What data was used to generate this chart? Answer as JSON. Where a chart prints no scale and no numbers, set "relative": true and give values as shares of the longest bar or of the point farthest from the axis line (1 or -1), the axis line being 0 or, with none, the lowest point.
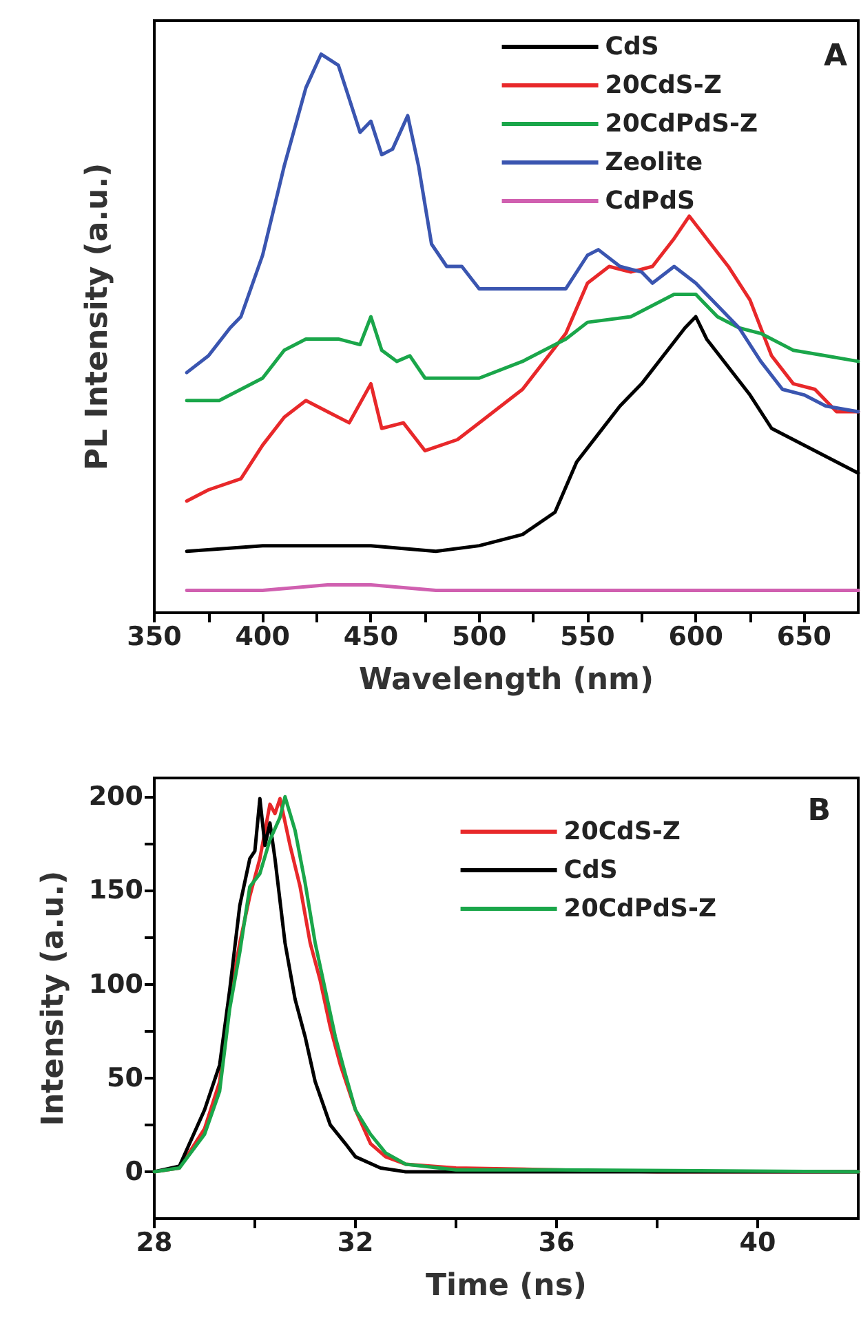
{
  "chart_data": [
    {
      "type": "line",
      "relative": true,
      "xlabel": "Wavelength (nm)",
      "ylabel": "PL Intensity (a.u.)",
      "annotations": [
        "A"
      ],
      "legend": "top right",
      "marker": "none",
      "line_style": "solid",
      "grid": false,
      "tick_labels": "x",
      "xlim": [
        350,
        675
      ],
      "xticks": [
        350,
        {
          "value": 375,
          "label": null
        },
        400,
        {
          "value": 425,
          "label": null
        },
        450,
        {
          "value": 475,
          "label": null
        },
        500,
        {
          "value": 525,
          "label": null
        },
        550,
        {
          "value": 575,
          "label": null
        },
        600,
        {
          "value": 625,
          "label": null
        },
        650
      ],
      "series": [
        {
          "name": "CdS",
          "color": "#000000",
          "x": [
            365,
            400,
            450,
            480,
            500,
            520,
            535,
            545,
            555,
            565,
            575,
            585,
            595,
            600,
            605,
            615,
            625,
            635,
            645,
            655,
            665,
            675
          ],
          "values": [
            0.11,
            0.12,
            0.12,
            0.11,
            0.12,
            0.14,
            0.18,
            0.27,
            0.32,
            0.37,
            0.41,
            0.46,
            0.51,
            0.53,
            0.49,
            0.44,
            0.39,
            0.33,
            0.31,
            0.29,
            0.27,
            0.25
          ]
        },
        {
          "name": "20CdS-Z",
          "color": "#e8282a",
          "x": [
            365,
            375,
            390,
            400,
            410,
            420,
            430,
            440,
            450,
            455,
            465,
            475,
            490,
            500,
            520,
            540,
            550,
            560,
            570,
            580,
            590,
            597,
            605,
            615,
            625,
            635,
            645,
            655,
            665,
            675
          ],
          "values": [
            0.2,
            0.22,
            0.24,
            0.3,
            0.35,
            0.38,
            0.36,
            0.34,
            0.41,
            0.33,
            0.34,
            0.29,
            0.31,
            0.34,
            0.4,
            0.5,
            0.59,
            0.62,
            0.61,
            0.62,
            0.67,
            0.71,
            0.67,
            0.62,
            0.56,
            0.46,
            0.41,
            0.4,
            0.36,
            0.36
          ]
        },
        {
          "name": "20CdPdS-Z",
          "color": "#1aa64a",
          "x": [
            365,
            380,
            400,
            410,
            420,
            435,
            445,
            450,
            455,
            462,
            468,
            475,
            490,
            500,
            520,
            540,
            550,
            570,
            590,
            600,
            610,
            620,
            630,
            645,
            660,
            675
          ],
          "values": [
            0.38,
            0.38,
            0.42,
            0.47,
            0.49,
            0.49,
            0.48,
            0.53,
            0.47,
            0.45,
            0.46,
            0.42,
            0.42,
            0.42,
            0.45,
            0.49,
            0.52,
            0.53,
            0.57,
            0.57,
            0.53,
            0.51,
            0.5,
            0.47,
            0.46,
            0.45
          ]
        },
        {
          "name": "Zeolite",
          "color": "#3a55b0",
          "x": [
            365,
            375,
            385,
            390,
            400,
            410,
            420,
            427,
            435,
            440,
            445,
            450,
            455,
            460,
            467,
            472,
            478,
            485,
            492,
            500,
            520,
            540,
            550,
            555,
            565,
            575,
            580,
            590,
            600,
            610,
            620,
            630,
            640,
            650,
            660,
            675
          ],
          "values": [
            0.43,
            0.46,
            0.51,
            0.53,
            0.64,
            0.8,
            0.94,
            1,
            0.98,
            0.92,
            0.86,
            0.88,
            0.82,
            0.83,
            0.89,
            0.8,
            0.66,
            0.62,
            0.62,
            0.58,
            0.58,
            0.58,
            0.64,
            0.65,
            0.62,
            0.61,
            0.59,
            0.62,
            0.59,
            0.55,
            0.51,
            0.45,
            0.4,
            0.39,
            0.37,
            0.36
          ]
        },
        {
          "name": "CdPdS",
          "color": "#d060b0",
          "x": [
            365,
            400,
            430,
            450,
            480,
            550,
            600,
            675
          ],
          "values": [
            0.04,
            0.04,
            0.05,
            0.05,
            0.04,
            0.04,
            0.04,
            0.04
          ]
        }
      ]
    },
    {
      "type": "line",
      "xlabel": "Time (ns)",
      "ylabel": "Intensity (a.u.)",
      "annotations": [
        "B"
      ],
      "legend": "top right",
      "marker": "none",
      "line_style": "solid",
      "grid": false,
      "xlim": [
        28,
        42
      ],
      "xticks": [
        28,
        {
          "value": 30,
          "label": null
        },
        32,
        {
          "value": 34,
          "label": null
        },
        36,
        {
          "value": 38,
          "label": null
        },
        40
      ],
      "ylim": [
        -25,
        210
      ],
      "yticks": [
        0,
        {
          "value": 25,
          "label": null
        },
        50,
        {
          "value": 75,
          "label": null
        },
        100,
        {
          "value": 125,
          "label": null
        },
        150,
        {
          "value": 175,
          "label": null
        },
        200
      ],
      "series": [
        {
          "name": "20CdS-Z",
          "color": "#e8282a",
          "x": [
            28,
            28.5,
            29,
            29.3,
            29.5,
            29.7,
            29.9,
            30.1,
            30.3,
            30.4,
            30.5,
            30.7,
            30.9,
            31.1,
            31.3,
            31.5,
            31.7,
            32,
            32.3,
            32.6,
            33,
            34,
            36,
            38,
            42
          ],
          "values": [
            0,
            2,
            23,
            48,
            92,
            122,
            147,
            167,
            196,
            191,
            199,
            174,
            152,
            122,
            102,
            77,
            57,
            33,
            15,
            8,
            4,
            2,
            1,
            0,
            0
          ]
        },
        {
          "name": "CdS",
          "color": "#000000",
          "x": [
            28,
            28.5,
            29,
            29.3,
            29.5,
            29.7,
            29.9,
            30,
            30.1,
            30.2,
            30.3,
            30.4,
            30.6,
            30.8,
            31,
            31.2,
            31.5,
            31.8,
            32,
            32.5,
            33,
            42
          ],
          "values": [
            0,
            3,
            33,
            57,
            97,
            142,
            167,
            171,
            199,
            174,
            186,
            167,
            122,
            92,
            72,
            48,
            25,
            15,
            8,
            2,
            0,
            0
          ]
        },
        {
          "name": "20CdPdS-Z",
          "color": "#1aa64a",
          "x": [
            28,
            28.5,
            29,
            29.3,
            29.5,
            29.7,
            29.9,
            30.1,
            30.3,
            30.5,
            30.6,
            30.8,
            31,
            31.2,
            31.4,
            31.6,
            31.8,
            32,
            32.3,
            32.6,
            33,
            34,
            36,
            42
          ],
          "values": [
            0,
            2,
            20,
            43,
            87,
            117,
            152,
            159,
            177,
            189,
            200,
            182,
            154,
            122,
            97,
            72,
            52,
            33,
            20,
            10,
            4,
            1,
            1,
            0
          ]
        }
      ]
    }
  ]
}
